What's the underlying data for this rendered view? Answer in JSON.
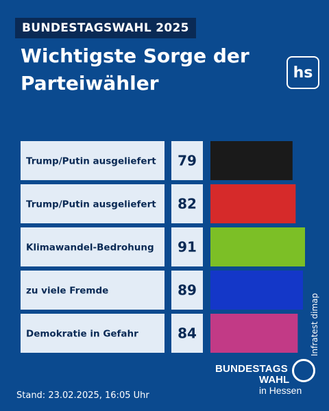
{
  "kicker": "BUNDESTAGSWAHL 2025",
  "chart_data": {
    "type": "bar",
    "title": "Wichtigste Sorge der Parteiwähler",
    "categories": [
      "Trump/Putin ausgeliefert",
      "Trump/Putin ausgeliefert",
      "Klimawandel-Bedrohung",
      "zu viele Fremde",
      "Demokratie in Gefahr"
    ],
    "values": [
      79,
      82,
      91,
      89,
      84
    ],
    "colors": [
      "#1a1a1a",
      "#d62a2a",
      "#7cbf26",
      "#1437c8",
      "#c23a86"
    ],
    "xlim": [
      0,
      100
    ],
    "orientation": "horizontal"
  },
  "logo_text": "hs",
  "source": "Infratest dimap",
  "stand": "Stand: 23.02.2025, 16:05 Uhr",
  "brand": {
    "line1": "BUNDESTAGS",
    "line2": "WAHL",
    "line3": "in Hessen"
  }
}
